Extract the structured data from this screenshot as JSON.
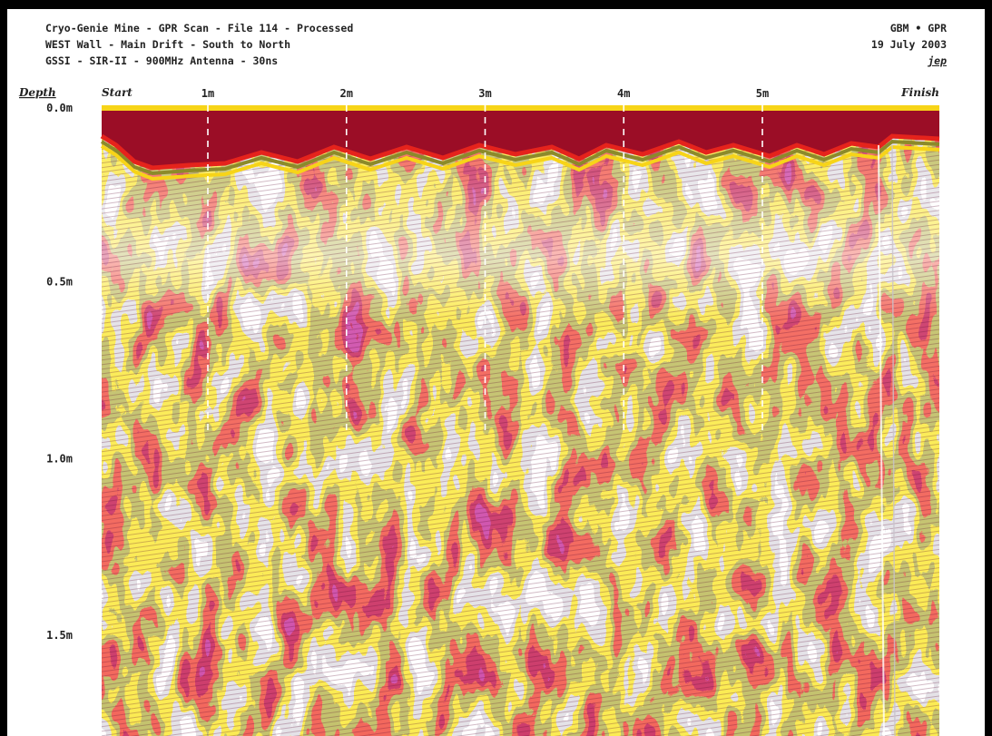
{
  "header": {
    "line1": "Cryo-Genie Mine - GPR Scan - File 114 - Processed",
    "line2": "WEST Wall - Main Drift - South to North",
    "line3": "GSSI - SIR-II - 900MHz Antenna - 30ns",
    "right1": "GBM • GPR",
    "right2": "19 July 2003",
    "right3": "jep"
  },
  "chart_data": {
    "type": "heatmap",
    "title": "Cryo-Genie Mine - GPR Scan - File 114 - Processed",
    "ylabel": "Depth",
    "x_start_label": "Start",
    "x_end_label": "Finish",
    "x_ticks": [
      "1m",
      "2m",
      "3m",
      "4m",
      "5m"
    ],
    "y_ticks": [
      "0.0m",
      "0.5m",
      "1.0m",
      "1.5m"
    ],
    "xlim": [
      0,
      6
    ],
    "ylim": [
      0,
      1.5
    ],
    "palette": [
      "#ffffff",
      "#c8c3cc",
      "#f7d418",
      "#8c8a2a",
      "#e5231c",
      "#9b0d26",
      "#a0176b"
    ]
  }
}
